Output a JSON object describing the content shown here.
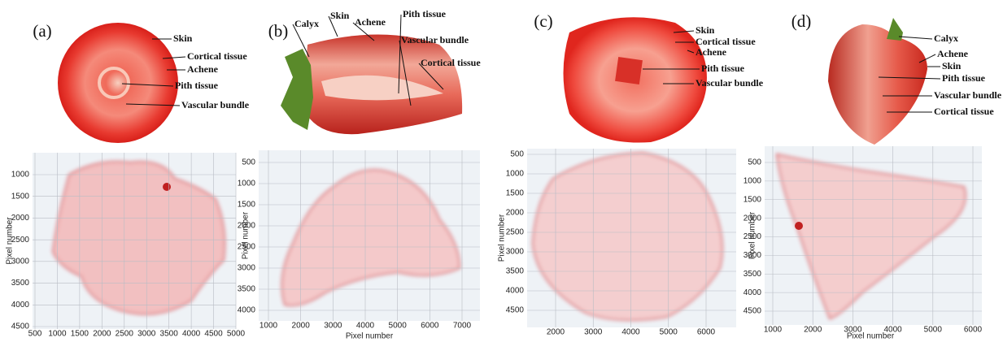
{
  "panels": [
    {
      "label": "(a)",
      "annotations": [
        "Skin",
        "Cortical tissue",
        "Achene",
        "Pith tissue",
        "Vascular bundle"
      ],
      "xticks": [
        500,
        1000,
        1500,
        2000,
        2500,
        3000,
        3500,
        4000,
        4500,
        5000
      ],
      "yticks": [
        1000,
        1500,
        2000,
        2500,
        3000,
        3500,
        4000,
        4500
      ],
      "ylabel": "Pixel number"
    },
    {
      "label": "(b)",
      "annotations": [
        "Calyx",
        "Skin",
        "Achene",
        "Pith tissue",
        "Vascular bundle",
        "Cortical tissue"
      ],
      "xticks": [
        1000,
        2000,
        3000,
        4000,
        5000,
        6000,
        7000
      ],
      "yticks": [
        500,
        1000,
        1500,
        2000,
        2500,
        3000,
        3500,
        4000
      ],
      "xlabel": "Pixel number",
      "ylabel": "Pixel number"
    },
    {
      "label": "(c)",
      "annotations": [
        "Skin",
        "Cortical tissue",
        "Achene",
        "Pith tissue",
        "Vascular bundle"
      ],
      "xticks": [
        2000,
        3000,
        4000,
        5000,
        6000
      ],
      "yticks": [
        500,
        1000,
        1500,
        2000,
        2500,
        3000,
        3500,
        4000,
        4500
      ],
      "ylabel": "Pixel number"
    },
    {
      "label": "(d)",
      "annotations": [
        "Calyx",
        "Achene",
        "Skin",
        "Pith tissue",
        "Vascular bundle",
        "Cortical tissue"
      ],
      "xticks": [
        1000,
        2000,
        3000,
        4000,
        5000,
        6000
      ],
      "yticks": [
        500,
        1000,
        1500,
        2000,
        2500,
        3000,
        3500,
        4000,
        4500
      ],
      "xlabel": "Pixel number",
      "ylabel": "Pixel number"
    }
  ]
}
